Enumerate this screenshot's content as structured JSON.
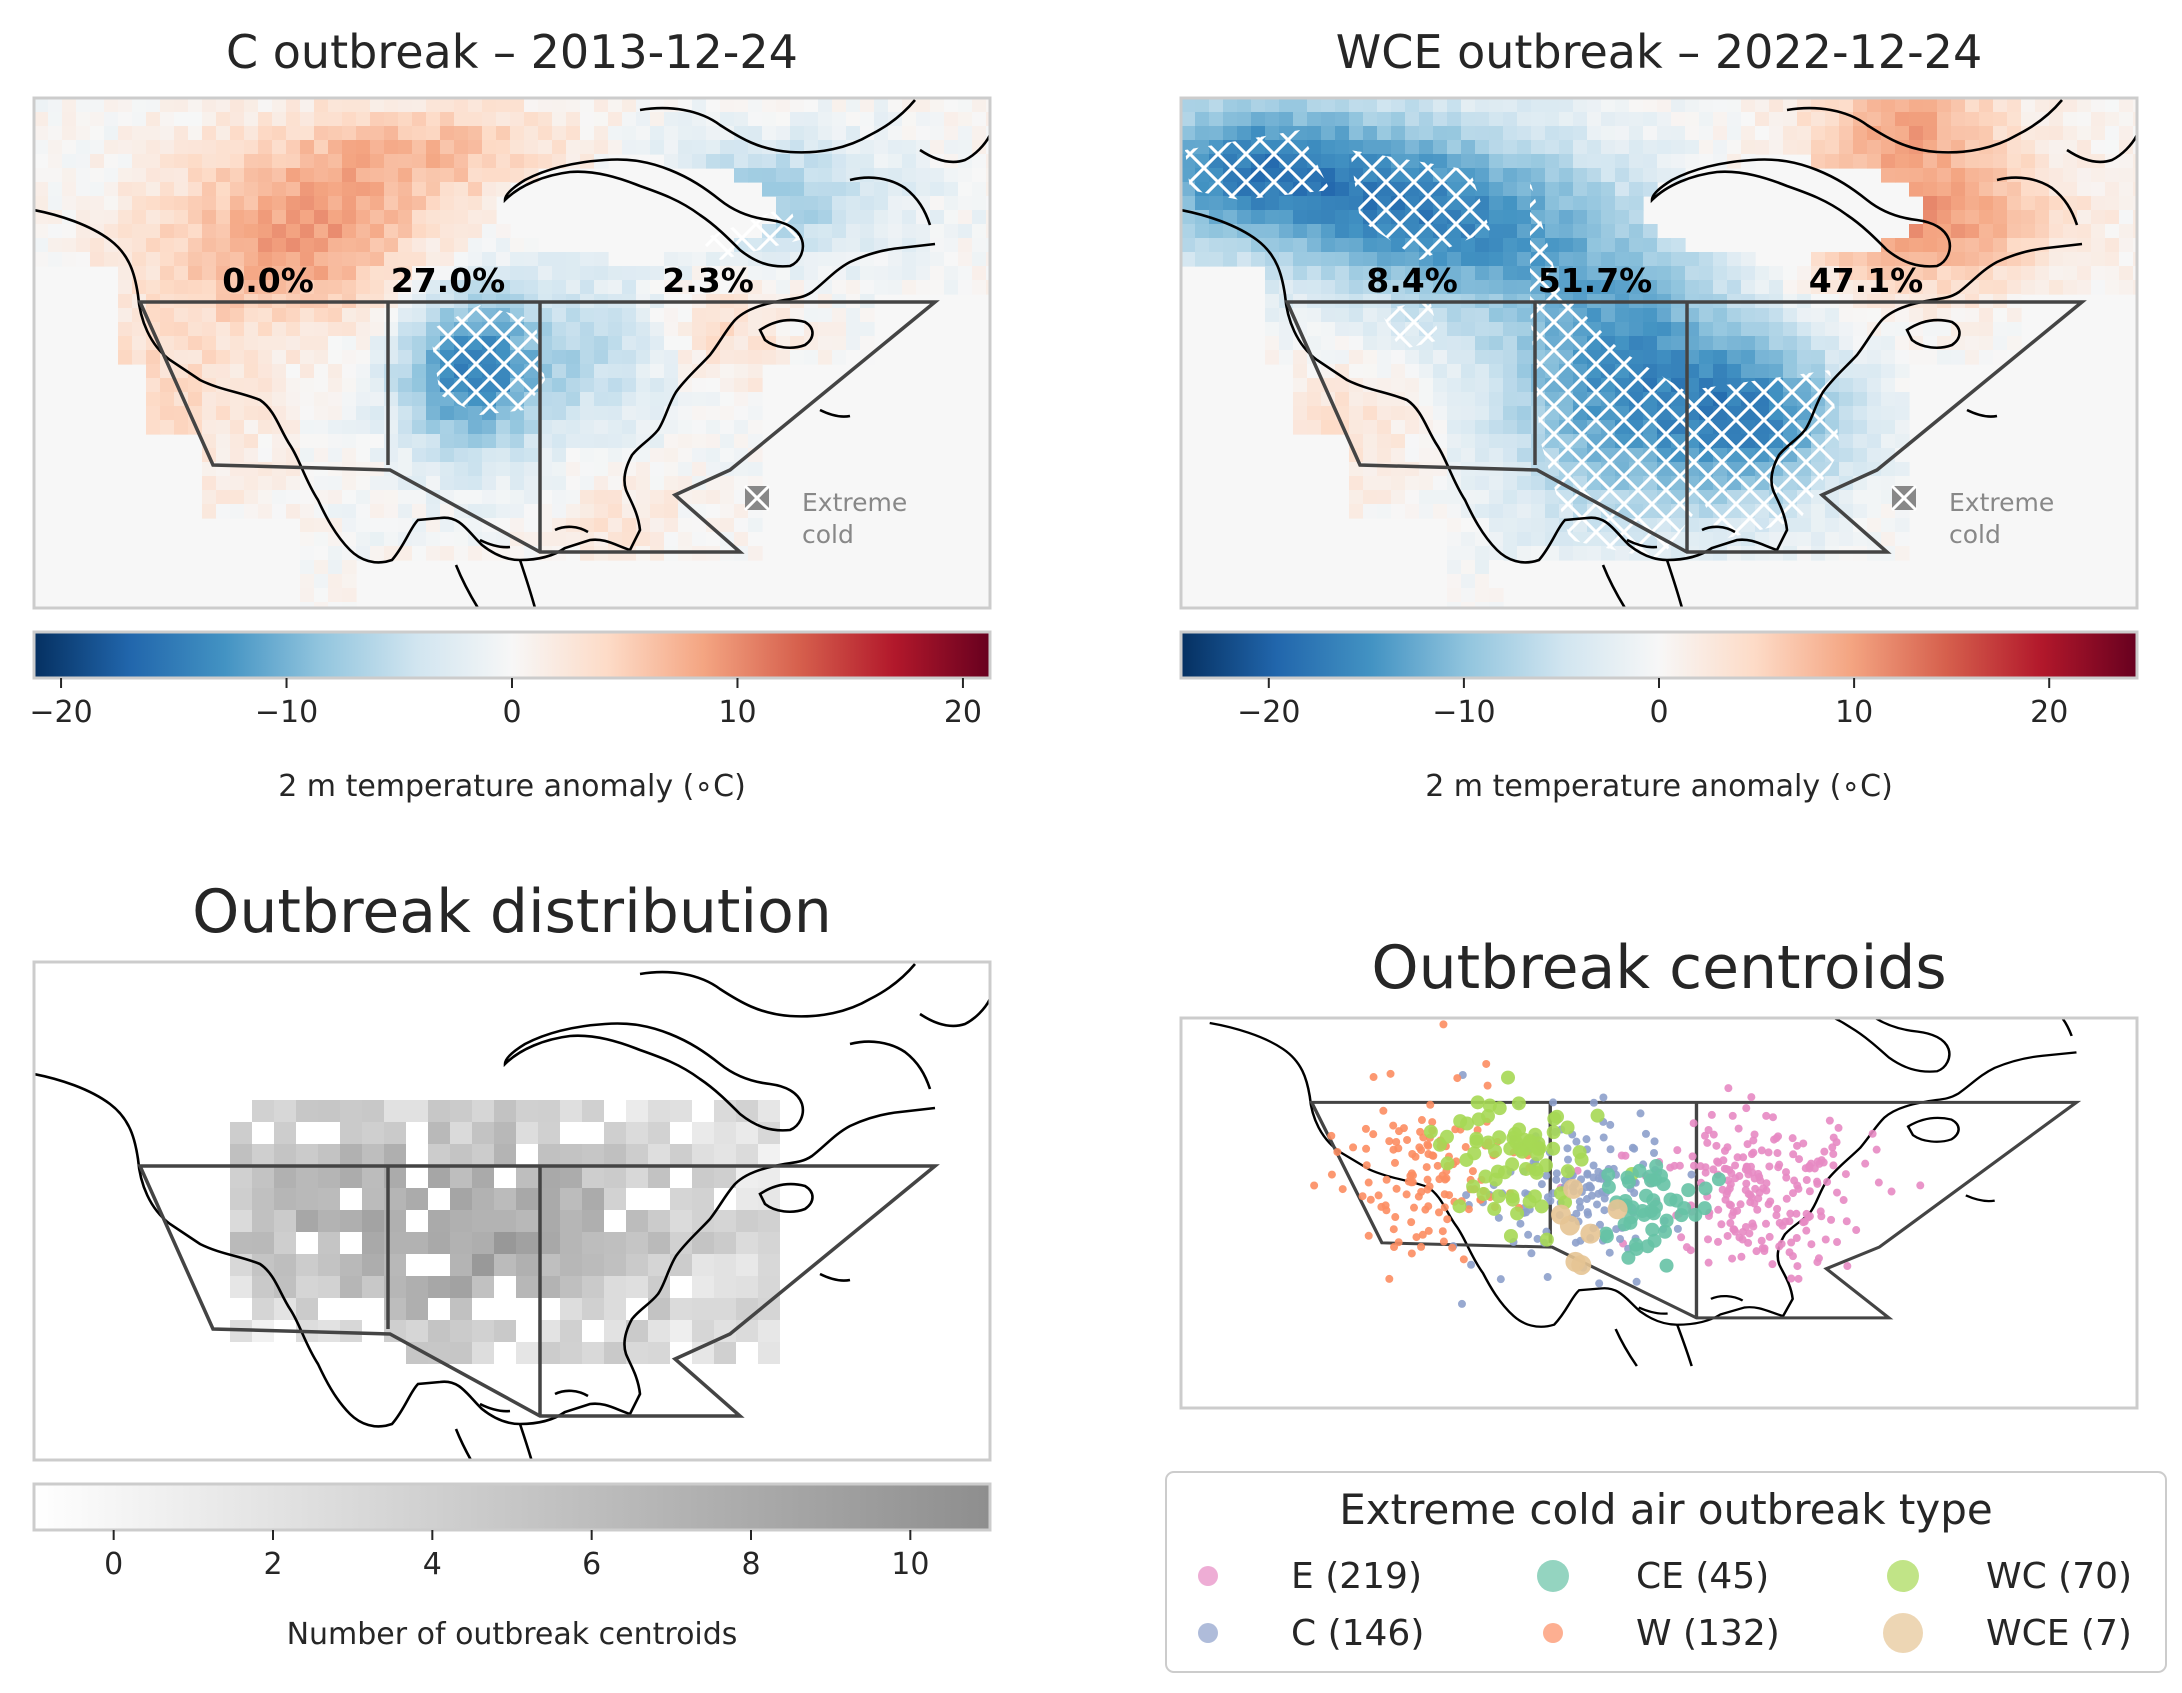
{
  "panels": {
    "c_outbreak": {
      "title": "C outbreak – 2013-12-24",
      "region_percent": [
        "0.0%",
        "27.0%",
        "2.3%"
      ],
      "legend_label": [
        "Extreme",
        "cold"
      ],
      "colorbar": {
        "ticks": [
          "−20",
          "−10",
          "0",
          "10",
          "20"
        ],
        "tick_values": [
          -20,
          -10,
          0,
          10,
          20
        ],
        "range": [
          -21.2,
          21.2
        ],
        "label": "2 m temperature anomaly ($\\circ C$)",
        "label_display": "2 m temperature anomaly (∘C)",
        "colormap": "RdBu_r"
      }
    },
    "wce_outbreak": {
      "title": "WCE outbreak – 2022-12-24",
      "region_percent": [
        "8.4%",
        "51.7%",
        "47.1%"
      ],
      "legend_label": [
        "Extreme",
        "cold"
      ],
      "colorbar": {
        "ticks": [
          "−20",
          "−10",
          "0",
          "10",
          "20"
        ],
        "tick_values": [
          -20,
          -10,
          0,
          10,
          20
        ],
        "range": [
          -24.5,
          24.5
        ],
        "label": "2 m temperature anomaly ($\\circ C$)",
        "label_display": "2 m temperature anomaly (∘C)",
        "colormap": "RdBu_r"
      }
    },
    "distribution": {
      "title": "Outbreak distribution",
      "colorbar": {
        "ticks": [
          "0",
          "2",
          "4",
          "6",
          "8",
          "10"
        ],
        "tick_values": [
          0,
          2,
          4,
          6,
          8,
          10
        ],
        "range": [
          -1,
          11
        ],
        "label": "Number of outbreak centroids",
        "colormap": "Greys"
      }
    },
    "centroids": {
      "title": "Outbreak centroids",
      "legend": {
        "title": "Extreme cold air outbreak type",
        "items": [
          {
            "label": "E (219)",
            "color": "#e78ac3"
          },
          {
            "label": "C (146)",
            "color": "#8da0cb"
          },
          {
            "label": "CE (45)",
            "color": "#66c2a5"
          },
          {
            "label": "W (132)",
            "color": "#fc8d62"
          },
          {
            "label": "WC (70)",
            "color": "#a6d854"
          },
          {
            "label": "WCE (7)",
            "color": "#e5c494"
          }
        ]
      }
    }
  }
}
